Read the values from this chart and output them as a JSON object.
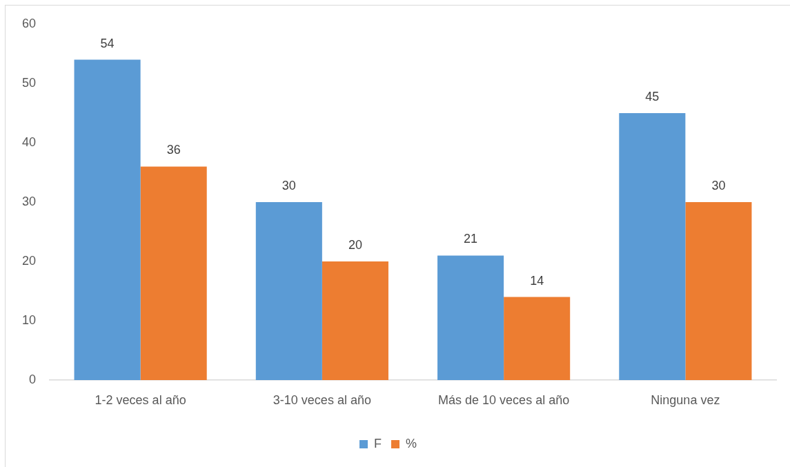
{
  "chart_data": {
    "type": "bar",
    "categories": [
      "1-2 veces al año",
      "3-10 veces al año",
      "Más de 10 veces al año",
      "Ninguna vez"
    ],
    "series": [
      {
        "name": "F",
        "color": "#5b9bd5",
        "values": [
          54,
          30,
          21,
          45
        ]
      },
      {
        "name": "%",
        "color": "#ed7d31",
        "values": [
          36,
          20,
          14,
          30
        ]
      }
    ],
    "ylim": [
      0,
      60
    ],
    "yticks": [
      0,
      10,
      20,
      30,
      40,
      50,
      60
    ],
    "data_labels": true,
    "legend": "bottom"
  }
}
